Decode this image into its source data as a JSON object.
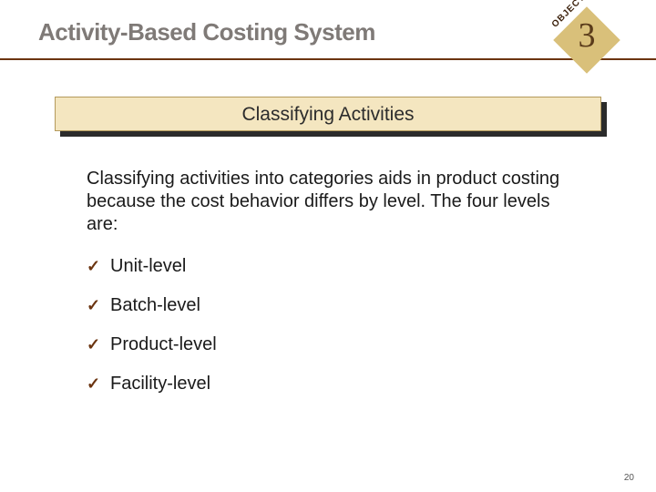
{
  "colors": {
    "title_text": "#7f7a77",
    "divider": "#6b3410",
    "diamond_fill": "#d9c07a",
    "diamond_text": "#5a3b1a",
    "subheader_fill": "#f4e6c0",
    "subheader_border": "#b49a5c",
    "subheader_shadow": "#2b2b2b",
    "body_text": "#1a1a1a",
    "checkmark": "#6b3410",
    "page_num": "#555555",
    "background": "#ffffff"
  },
  "typography": {
    "title_fontsize": 26,
    "subheader_fontsize": 21,
    "body_fontsize": 20,
    "objective_num_fontsize": 38,
    "page_num_fontsize": 10
  },
  "title": "Activity-Based Costing System",
  "objective": {
    "label": "OBJECTIVE",
    "number": "3"
  },
  "subheader": "Classifying Activities",
  "body": "Classifying activities into categories aids in product costing because the cost behavior differs by level. The four levels are:",
  "levels": [
    "Unit-level",
    "Batch-level",
    "Product-level",
    "Facility-level"
  ],
  "page_number": "20"
}
